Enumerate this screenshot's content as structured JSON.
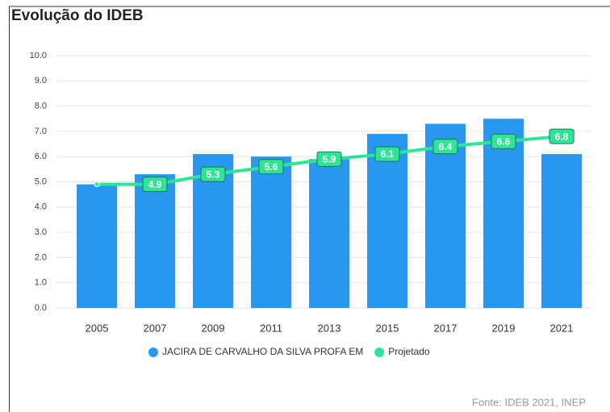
{
  "chart_data": {
    "type": "bar-line",
    "title": "Evolução do IDEB",
    "categories": [
      "2005",
      "2007",
      "2009",
      "2011",
      "2013",
      "2015",
      "2017",
      "2019",
      "2021"
    ],
    "series": [
      {
        "name": "JACIRA DE CARVALHO DA SILVA PROFA EM",
        "color": "#2a97f0",
        "type": "bar",
        "values": [
          4.9,
          5.3,
          6.1,
          6.0,
          5.9,
          6.9,
          7.3,
          7.5,
          6.1
        ]
      },
      {
        "name": "Projetado",
        "color": "#2ee597",
        "type": "line",
        "values": [
          4.9,
          4.9,
          5.3,
          5.6,
          5.9,
          6.1,
          6.4,
          6.6,
          6.8
        ],
        "value_labels": [
          null,
          "4.9",
          "5.3",
          "5.6",
          "5.9",
          "6.1",
          "6.4",
          "6.6",
          "6.8"
        ]
      }
    ],
    "ylim": [
      0,
      10
    ],
    "yticks": [
      {
        "value": 0,
        "label": "0.0"
      },
      {
        "value": 1,
        "label": "1.0"
      },
      {
        "value": 2,
        "label": "2.0"
      },
      {
        "value": 3,
        "label": "3.0"
      },
      {
        "value": 4,
        "label": "4.0"
      },
      {
        "value": 5,
        "label": "5.0"
      },
      {
        "value": 6,
        "label": "6.0"
      },
      {
        "value": 7,
        "label": "7.0"
      },
      {
        "value": 8,
        "label": "8.0"
      },
      {
        "value": 9,
        "label": "9.0"
      },
      {
        "value": 10,
        "label": "10.0"
      }
    ],
    "grid": true,
    "source": "Fonte: IDEB 2021, INEP"
  }
}
